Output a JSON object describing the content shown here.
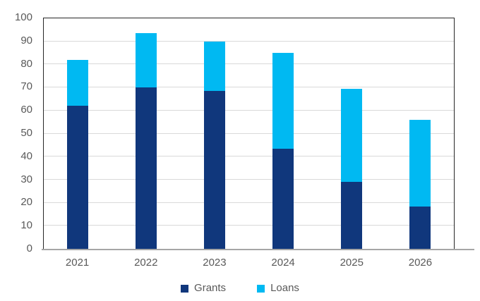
{
  "chart_data": {
    "type": "bar",
    "stacked": true,
    "title": "",
    "xlabel": "",
    "ylabel": "",
    "categories": [
      "2021",
      "2022",
      "2023",
      "2024",
      "2025",
      "2026"
    ],
    "series": [
      {
        "name": "Grants",
        "color": "#10377c",
        "values": [
          62,
          70,
          68.5,
          43.5,
          29,
          18.5
        ]
      },
      {
        "name": "Loans",
        "color": "#00b9f2",
        "values": [
          20,
          23.5,
          21.5,
          41.5,
          40.5,
          37.5
        ]
      }
    ],
    "stack_totals": [
      82,
      93.5,
      90,
      85,
      69.5,
      56
    ],
    "ylim": [
      0,
      100
    ],
    "yticks": [
      0,
      10,
      20,
      30,
      40,
      50,
      60,
      70,
      80,
      90,
      100
    ],
    "grid": true,
    "legend_position": "bottom"
  },
  "style": {
    "axis_text_color": "#595959",
    "gridline_color": "#d9d9d9",
    "plot_border_color": "#262626",
    "baseline_color": "#a6a6a6",
    "background": "#ffffff"
  }
}
